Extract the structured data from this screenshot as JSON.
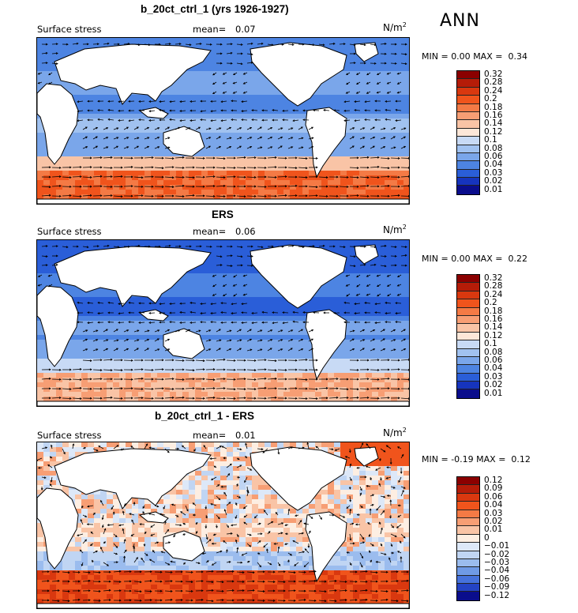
{
  "season": "ANN",
  "panels": [
    {
      "title": "b_20ct_ctrl_1 (yrs 1926-1927)",
      "variable": "Surface stress",
      "mean_label": "mean=",
      "mean_value": "0.07",
      "units": "N/m",
      "units_exp": "2",
      "min_label": "MIN =",
      "min_value": "0.00",
      "max_label": "MAX =",
      "max_value": "0.34",
      "colorbar_labels": [
        "0.32",
        "0.28",
        "0.24",
        "0.2",
        "0.18",
        "0.16",
        "0.14",
        "0.12",
        "0.1",
        "0.08",
        "0.06",
        "0.04",
        "0.03",
        "0.02",
        "0.01"
      ]
    },
    {
      "title": "ERS",
      "variable": "Surface stress",
      "mean_label": "mean=",
      "mean_value": "0.06",
      "units": "N/m",
      "units_exp": "2",
      "min_label": "MIN =",
      "min_value": "0.00",
      "max_label": "MAX =",
      "max_value": "0.22",
      "colorbar_labels": [
        "0.32",
        "0.28",
        "0.24",
        "0.2",
        "0.18",
        "0.16",
        "0.14",
        "0.12",
        "0.1",
        "0.08",
        "0.06",
        "0.04",
        "0.03",
        "0.02",
        "0.01"
      ]
    },
    {
      "title": "b_20ct_ctrl_1 - ERS",
      "variable": "Surface stress",
      "mean_label": "mean=",
      "mean_value": "0.01",
      "units": "N/m",
      "units_exp": "2",
      "min_label": "MIN =",
      "min_value": "-0.19",
      "max_label": "MAX =",
      "max_value": "0.12",
      "colorbar_labels": [
        "0.12",
        "0.09",
        "0.06",
        "0.04",
        "0.03",
        "0.02",
        "0.01",
        "0",
        "−0.01",
        "−0.02",
        "−0.03",
        "−0.04",
        "−0.06",
        "−0.09",
        "−0.12"
      ]
    }
  ],
  "colors": {
    "abs_scale": [
      "#8b0000",
      "#b51c08",
      "#d9380f",
      "#f0541c",
      "#f47a45",
      "#f79e74",
      "#f9c4a6",
      "#fde7d8",
      "#c8daf5",
      "#a1c2f0",
      "#7aa6ea",
      "#4d84e2",
      "#2a5ed8",
      "#1634bd",
      "#0a0d8c"
    ],
    "diff_scale": [
      "#8b0000",
      "#b51c08",
      "#d9380f",
      "#f0541c",
      "#f47a45",
      "#f79e74",
      "#f9c4a6",
      "#fdeee2",
      "#dde8f8",
      "#c0d5f3",
      "#9bbcee",
      "#6f9ae6",
      "#4672dc",
      "#2443c4",
      "#0a0d8c"
    ],
    "land": "#ffffff"
  }
}
